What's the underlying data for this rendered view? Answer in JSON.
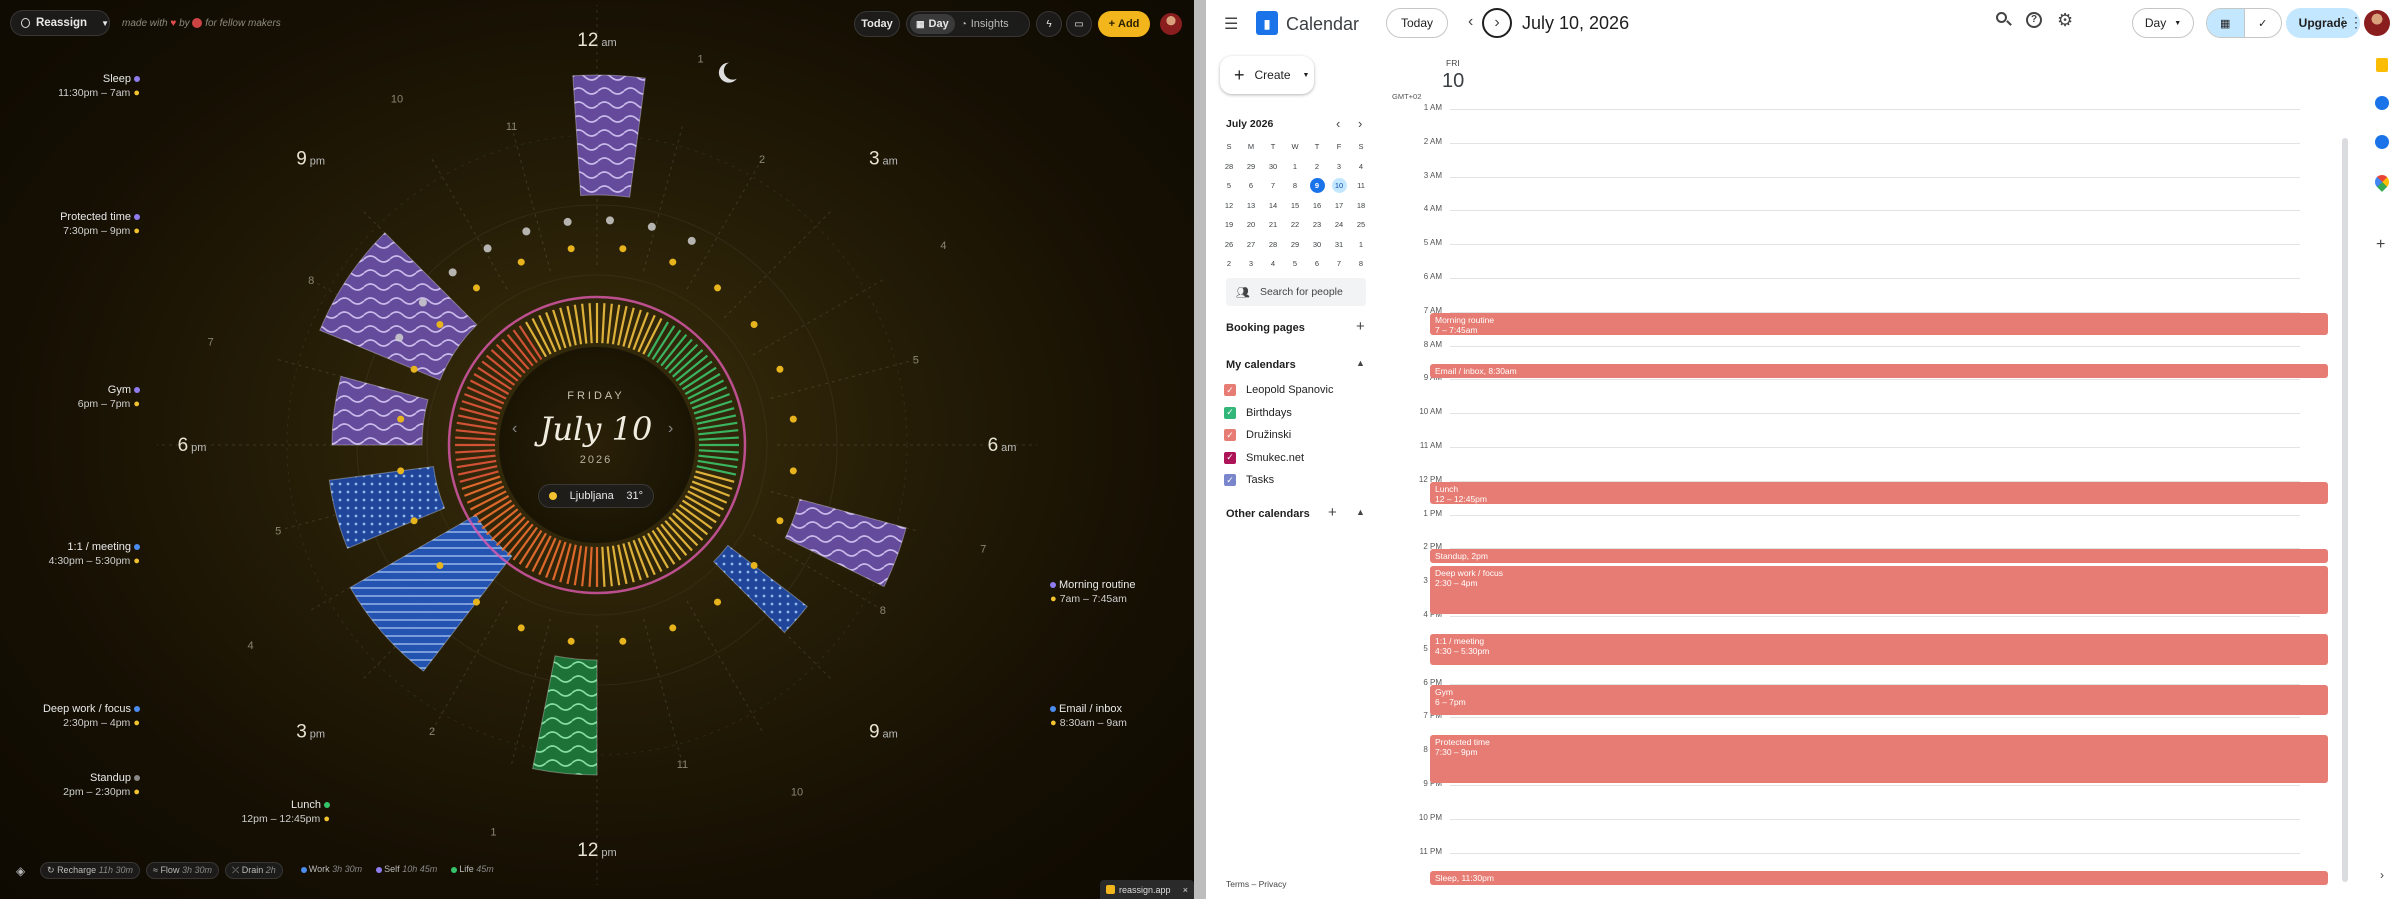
{
  "left_app": {
    "reassign_label": "Reassign",
    "made_with": "made with",
    "by": "by",
    "for_fellow": "for fellow makers",
    "today_label": "Today",
    "day_label": "Day",
    "insights_label": "Insights",
    "add_label": "Add",
    "dial": {
      "weekday": "FRIDAY",
      "date": "July 10",
      "year": "2026",
      "city": "Ljubljana",
      "temp": "31°",
      "hours": {
        "h12am": "12",
        "am1": "am",
        "h3am": "3",
        "am2": "am",
        "h6am": "6",
        "am3": "am",
        "h9am": "9",
        "am4": "am",
        "h12pm": "12",
        "pm1": "pm",
        "h3pm": "3",
        "pm2": "pm",
        "h6pm": "6",
        "pm3": "pm",
        "h9pm": "9",
        "pm4": "pm"
      },
      "minor": [
        "1",
        "2",
        "4",
        "5",
        "7",
        "8",
        "10",
        "11",
        "1",
        "2",
        "4",
        "5",
        "7",
        "8",
        "10",
        "11"
      ]
    },
    "events": [
      {
        "name": "Sleep",
        "time": "11:30pm – 7am"
      },
      {
        "name": "Protected time",
        "time": "7:30pm – 9pm"
      },
      {
        "name": "Gym",
        "time": "6pm – 7pm"
      },
      {
        "name": "1:1 / meeting",
        "time": "4:30pm – 5:30pm"
      },
      {
        "name": "Deep work / focus",
        "time": "2:30pm – 4pm"
      },
      {
        "name": "Standup",
        "time": "2pm – 2:30pm"
      },
      {
        "name": "Lunch",
        "time": "12pm – 12:45pm"
      },
      {
        "name": "Morning routine",
        "time": "7am – 7:45am"
      },
      {
        "name": "Email / inbox",
        "time": "8:30am – 9am"
      }
    ],
    "footer": {
      "recharge": "Recharge",
      "recharge_v": "11h 30m",
      "flow": "Flow",
      "flow_v": "3h 30m",
      "drain": "Drain",
      "drain_v": "2h",
      "work": "Work",
      "work_v": "3h 30m",
      "self": "Self",
      "self_v": "10h 45m",
      "life": "Life",
      "life_v": "45m",
      "reassign_app": "reassign.app"
    }
  },
  "gcal": {
    "app_name": "Calendar",
    "today_label": "Today",
    "date_title": "July 10, 2026",
    "view_label": "Day",
    "upgrade_label": "Upgrade",
    "create_label": "Create",
    "mini_month": "July 2026",
    "weekdays": [
      "S",
      "M",
      "T",
      "W",
      "T",
      "F",
      "S"
    ],
    "weeks": [
      [
        "28",
        "29",
        "30",
        "1",
        "2",
        "3",
        "4"
      ],
      [
        "5",
        "6",
        "7",
        "8",
        "9",
        "10",
        "11"
      ],
      [
        "12",
        "13",
        "14",
        "15",
        "16",
        "17",
        "18"
      ],
      [
        "19",
        "20",
        "21",
        "22",
        "23",
        "24",
        "25"
      ],
      [
        "26",
        "27",
        "28",
        "29",
        "30",
        "31",
        "1"
      ],
      [
        "2",
        "3",
        "4",
        "5",
        "6",
        "7",
        "8"
      ]
    ],
    "search_people": "Search for people",
    "booking_pages": "Booking pages",
    "my_calendars": "My calendars",
    "calendars": [
      {
        "name": "Leopold Spanovic",
        "color": "#e67c73"
      },
      {
        "name": "Birthdays",
        "color": "#33b679"
      },
      {
        "name": "Družinski",
        "color": "#e67c73"
      },
      {
        "name": "Smukec.net",
        "color": "#ad1457"
      },
      {
        "name": "Tasks",
        "color": "#7986cb"
      }
    ],
    "other_calendars": "Other calendars",
    "terms": "Terms",
    "dash": "–",
    "privacy": "Privacy",
    "day_abbr": "FRI",
    "day_num": "10",
    "tz": "GMT+02",
    "hours": [
      "1 AM",
      "2 AM",
      "3 AM",
      "4 AM",
      "5 AM",
      "6 AM",
      "7 AM",
      "8 AM",
      "9 AM",
      "10 AM",
      "11 AM",
      "12 PM",
      "1 PM",
      "2 PM",
      "3 PM",
      "4 PM",
      "5 PM",
      "6 PM",
      "7 PM",
      "8 PM",
      "9 PM",
      "10 PM",
      "11 PM"
    ],
    "events": [
      {
        "title": "Morning routine",
        "time": "7 – 7:45am"
      },
      {
        "title": "Email / inbox, 8:30am",
        "time": ""
      },
      {
        "title": "Lunch",
        "time": "12 – 12:45pm"
      },
      {
        "title": "Standup, 2pm",
        "time": ""
      },
      {
        "title": "Deep work / focus",
        "time": "2:30 – 4pm"
      },
      {
        "title": "1:1 / meeting",
        "time": "4:30 – 5:30pm"
      },
      {
        "title": "Gym",
        "time": "6 – 7pm"
      },
      {
        "title": "Protected time",
        "time": "7:30 – 9pm"
      },
      {
        "title": "Sleep, 11:30pm",
        "time": ""
      }
    ]
  }
}
